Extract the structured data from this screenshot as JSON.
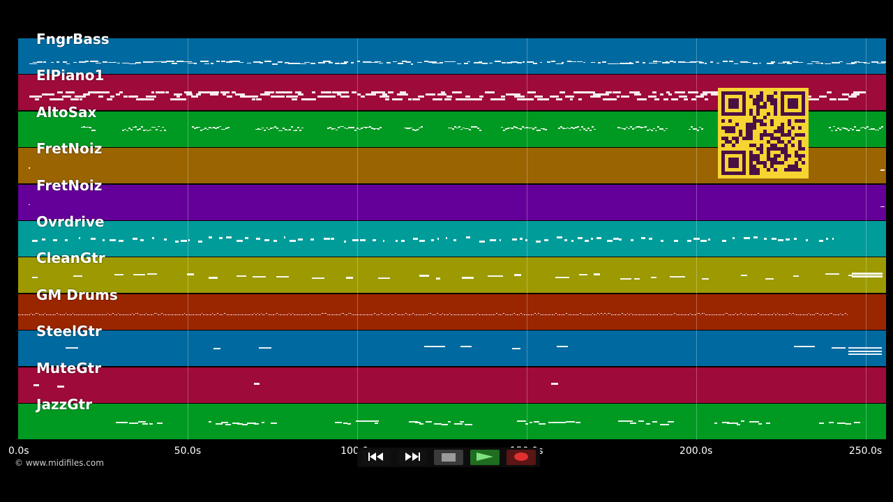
{
  "colors": {
    "background": "#000000",
    "note": "#ffffff",
    "qr_background": "#f6d432",
    "qr_module": "#4a1044"
  },
  "timeline": {
    "duration_s": 256,
    "ticks": [
      {
        "t": 0,
        "label": "0.0s"
      },
      {
        "t": 50,
        "label": "50.0s"
      },
      {
        "t": 100,
        "label": "100.0s"
      },
      {
        "t": 150,
        "label": "150.0s"
      },
      {
        "t": 200,
        "label": "200.0s"
      },
      {
        "t": 250,
        "label": "250.0s"
      }
    ]
  },
  "tracks": [
    {
      "name": "FngrBass",
      "color": "#006aa0",
      "style": "bass"
    },
    {
      "name": "ElPiano1",
      "color": "#9e0a3a",
      "style": "piano"
    },
    {
      "name": "AltoSax",
      "color": "#009a22",
      "style": "sax"
    },
    {
      "name": "FretNoiz",
      "color": "#9a6400",
      "style": "noise"
    },
    {
      "name": "FretNoiz",
      "color": "#640099",
      "style": "noise"
    },
    {
      "name": "Ovrdrive",
      "color": "#009c9a",
      "style": "ovr"
    },
    {
      "name": "CleanGtr",
      "color": "#9c9a00",
      "style": "clean"
    },
    {
      "name": "GM Drums",
      "color": "#9a2600",
      "style": "drums"
    },
    {
      "name": "SteelGtr",
      "color": "#006aa0",
      "style": "steel"
    },
    {
      "name": "MuteGtr",
      "color": "#9e0a3a",
      "style": "mute"
    },
    {
      "name": "JazzGtr",
      "color": "#009a22",
      "style": "jazz"
    }
  ],
  "transport": [
    {
      "name": "rewind-button",
      "icon": "rewind-icon",
      "bg": "#111111"
    },
    {
      "name": "fast-forward-button",
      "icon": "fast-forward-icon",
      "bg": "#111111"
    },
    {
      "name": "stop-button",
      "icon": "stop-icon",
      "bg": "#3a3a3a"
    },
    {
      "name": "play-button",
      "icon": "play-icon",
      "bg": "#1f6e1f"
    },
    {
      "name": "record-button",
      "icon": "record-icon",
      "bg": "#5a1515"
    }
  ],
  "footer": {
    "copyright": "© www.midifiles.com"
  }
}
